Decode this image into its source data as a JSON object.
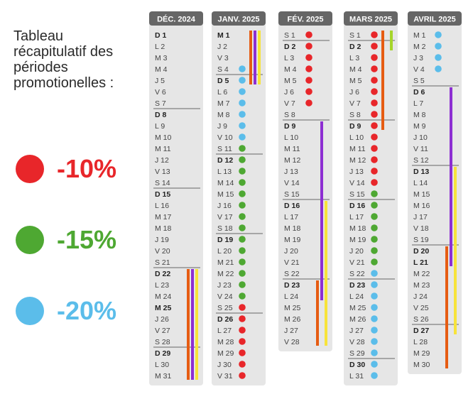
{
  "title": "Tableau récapitulatif des périodes promotionelles :",
  "title_lines": [
    "Tableau",
    "récapitulatif des",
    "périodes",
    "promotionelles :"
  ],
  "legend": [
    {
      "label": "-10%",
      "color": "#e8262a"
    },
    {
      "label": "-15%",
      "color": "#4ea832"
    },
    {
      "label": "-20%",
      "color": "#5bbdea"
    }
  ],
  "bar_colors": {
    "orange": "#e65c12",
    "purple": "#8d2ed2",
    "yellow": "#f7e33a",
    "lime": "#a5d52a"
  },
  "months": [
    {
      "name": "DÉC. 2024",
      "days": [
        {
          "l": "D",
          "n": "1",
          "b": true
        },
        {
          "l": "L",
          "n": "2"
        },
        {
          "l": "M",
          "n": "3"
        },
        {
          "l": "M",
          "n": "4"
        },
        {
          "l": "J",
          "n": "5"
        },
        {
          "l": "V",
          "n": "6"
        },
        {
          "l": "S",
          "n": "7"
        },
        {
          "l": "D",
          "n": "8",
          "b": true
        },
        {
          "l": "L",
          "n": "9"
        },
        {
          "l": "M",
          "n": "10"
        },
        {
          "l": "M",
          "n": "11"
        },
        {
          "l": "J",
          "n": "12"
        },
        {
          "l": "V",
          "n": "13"
        },
        {
          "l": "S",
          "n": "14"
        },
        {
          "l": "D",
          "n": "15",
          "b": true
        },
        {
          "l": "L",
          "n": "16"
        },
        {
          "l": "M",
          "n": "17"
        },
        {
          "l": "M",
          "n": "18"
        },
        {
          "l": "J",
          "n": "19"
        },
        {
          "l": "V",
          "n": "20"
        },
        {
          "l": "S",
          "n": "21"
        },
        {
          "l": "D",
          "n": "22",
          "b": true
        },
        {
          "l": "L",
          "n": "23"
        },
        {
          "l": "M",
          "n": "24"
        },
        {
          "l": "M",
          "n": "25",
          "b": true
        },
        {
          "l": "J",
          "n": "26"
        },
        {
          "l": "V",
          "n": "27"
        },
        {
          "l": "S",
          "n": "28"
        },
        {
          "l": "D",
          "n": "29",
          "b": true
        },
        {
          "l": "L",
          "n": "30"
        },
        {
          "l": "M",
          "n": "31"
        }
      ],
      "dots": [],
      "seps": [
        1,
        8,
        15,
        22,
        29
      ],
      "bars": [
        {
          "color": "orange",
          "from": 22,
          "to": 31
        },
        {
          "color": "purple",
          "from": 22,
          "to": 31
        },
        {
          "color": "yellow",
          "from": 22,
          "to": 31
        }
      ]
    },
    {
      "name": "JANV. 2025",
      "days": [
        {
          "l": "M",
          "n": "1",
          "b": true
        },
        {
          "l": "J",
          "n": "2"
        },
        {
          "l": "V",
          "n": "3"
        },
        {
          "l": "S",
          "n": "4"
        },
        {
          "l": "D",
          "n": "5",
          "b": true
        },
        {
          "l": "L",
          "n": "6"
        },
        {
          "l": "M",
          "n": "7"
        },
        {
          "l": "M",
          "n": "8"
        },
        {
          "l": "J",
          "n": "9"
        },
        {
          "l": "V",
          "n": "10"
        },
        {
          "l": "S",
          "n": "11"
        },
        {
          "l": "D",
          "n": "12",
          "b": true
        },
        {
          "l": "L",
          "n": "13"
        },
        {
          "l": "M",
          "n": "14"
        },
        {
          "l": "M",
          "n": "15"
        },
        {
          "l": "J",
          "n": "16"
        },
        {
          "l": "V",
          "n": "17"
        },
        {
          "l": "S",
          "n": "18"
        },
        {
          "l": "D",
          "n": "19",
          "b": true
        },
        {
          "l": "L",
          "n": "20"
        },
        {
          "l": "M",
          "n": "21"
        },
        {
          "l": "M",
          "n": "22"
        },
        {
          "l": "J",
          "n": "23"
        },
        {
          "l": "V",
          "n": "24"
        },
        {
          "l": "S",
          "n": "25"
        },
        {
          "l": "D",
          "n": "26",
          "b": true
        },
        {
          "l": "L",
          "n": "27"
        },
        {
          "l": "M",
          "n": "28"
        },
        {
          "l": "M",
          "n": "29"
        },
        {
          "l": "J",
          "n": "30"
        },
        {
          "l": "V",
          "n": "31"
        }
      ],
      "dots": [
        "",
        "",
        "",
        "blue",
        "blue",
        "blue",
        "blue",
        "blue",
        "blue",
        "blue",
        "green",
        "green",
        "green",
        "green",
        "green",
        "green",
        "green",
        "green",
        "green",
        "green",
        "green",
        "green",
        "green",
        "green",
        "red",
        "red",
        "red",
        "red",
        "red",
        "red",
        "red"
      ],
      "seps": [
        5,
        12,
        19,
        26
      ],
      "bars": [
        {
          "color": "orange",
          "from": 1,
          "to": 5
        },
        {
          "color": "purple",
          "from": 1,
          "to": 5
        },
        {
          "color": "yellow",
          "from": 1,
          "to": 5
        }
      ]
    },
    {
      "name": "FÉV. 2025",
      "days": [
        {
          "l": "S",
          "n": "1"
        },
        {
          "l": "D",
          "n": "2",
          "b": true
        },
        {
          "l": "L",
          "n": "3"
        },
        {
          "l": "M",
          "n": "4"
        },
        {
          "l": "M",
          "n": "5"
        },
        {
          "l": "J",
          "n": "6"
        },
        {
          "l": "V",
          "n": "7"
        },
        {
          "l": "S",
          "n": "8"
        },
        {
          "l": "D",
          "n": "9",
          "b": true
        },
        {
          "l": "L",
          "n": "10"
        },
        {
          "l": "M",
          "n": "11"
        },
        {
          "l": "M",
          "n": "12"
        },
        {
          "l": "J",
          "n": "13"
        },
        {
          "l": "V",
          "n": "14"
        },
        {
          "l": "S",
          "n": "15"
        },
        {
          "l": "D",
          "n": "16",
          "b": true
        },
        {
          "l": "L",
          "n": "17"
        },
        {
          "l": "M",
          "n": "18"
        },
        {
          "l": "M",
          "n": "19"
        },
        {
          "l": "J",
          "n": "20"
        },
        {
          "l": "V",
          "n": "21"
        },
        {
          "l": "S",
          "n": "22"
        },
        {
          "l": "D",
          "n": "23",
          "b": true
        },
        {
          "l": "L",
          "n": "24"
        },
        {
          "l": "M",
          "n": "25"
        },
        {
          "l": "M",
          "n": "26"
        },
        {
          "l": "J",
          "n": "27"
        },
        {
          "l": "V",
          "n": "28"
        }
      ],
      "dots": [
        "red",
        "red",
        "red",
        "red",
        "red",
        "red",
        "red"
      ],
      "seps": [
        2,
        9,
        16,
        23
      ],
      "bars": [
        {
          "color": "purple",
          "from": 9,
          "to": 24
        },
        {
          "color": "yellow",
          "from": 16,
          "to": 28
        },
        {
          "color": "orange",
          "from": 23,
          "to": 28
        }
      ]
    },
    {
      "name": "MARS 2025",
      "days": [
        {
          "l": "S",
          "n": "1"
        },
        {
          "l": "D",
          "n": "2",
          "b": true
        },
        {
          "l": "L",
          "n": "3"
        },
        {
          "l": "M",
          "n": "4"
        },
        {
          "l": "M",
          "n": "5"
        },
        {
          "l": "J",
          "n": "6"
        },
        {
          "l": "V",
          "n": "7"
        },
        {
          "l": "S",
          "n": "8"
        },
        {
          "l": "D",
          "n": "9",
          "b": true
        },
        {
          "l": "L",
          "n": "10"
        },
        {
          "l": "M",
          "n": "11"
        },
        {
          "l": "M",
          "n": "12"
        },
        {
          "l": "J",
          "n": "13"
        },
        {
          "l": "V",
          "n": "14"
        },
        {
          "l": "S",
          "n": "15"
        },
        {
          "l": "D",
          "n": "16",
          "b": true
        },
        {
          "l": "L",
          "n": "17"
        },
        {
          "l": "M",
          "n": "18"
        },
        {
          "l": "M",
          "n": "19"
        },
        {
          "l": "J",
          "n": "20"
        },
        {
          "l": "V",
          "n": "21"
        },
        {
          "l": "S",
          "n": "22"
        },
        {
          "l": "D",
          "n": "23",
          "b": true
        },
        {
          "l": "L",
          "n": "24"
        },
        {
          "l": "M",
          "n": "25"
        },
        {
          "l": "M",
          "n": "26"
        },
        {
          "l": "J",
          "n": "27"
        },
        {
          "l": "V",
          "n": "28"
        },
        {
          "l": "S",
          "n": "29"
        },
        {
          "l": "D",
          "n": "30",
          "b": true
        },
        {
          "l": "L",
          "n": "31"
        }
      ],
      "dots": [
        "red",
        "red",
        "red",
        "red",
        "red",
        "red",
        "red",
        "red",
        "red",
        "red",
        "red",
        "red",
        "red",
        "red",
        "green",
        "green",
        "green",
        "green",
        "green",
        "green",
        "green",
        "blue",
        "blue",
        "blue",
        "blue",
        "blue",
        "blue",
        "blue",
        "blue",
        "blue",
        "blue"
      ],
      "seps": [
        2,
        9,
        16,
        23,
        30
      ],
      "bars": [
        {
          "color": "orange",
          "from": 1,
          "to": 9
        },
        {
          "color": "lime",
          "from": 1,
          "to": 2
        }
      ]
    },
    {
      "name": "AVRIL 2025",
      "days": [
        {
          "l": "M",
          "n": "1"
        },
        {
          "l": "M",
          "n": "2"
        },
        {
          "l": "J",
          "n": "3"
        },
        {
          "l": "V",
          "n": "4"
        },
        {
          "l": "S",
          "n": "5"
        },
        {
          "l": "D",
          "n": "6",
          "b": true
        },
        {
          "l": "L",
          "n": "7"
        },
        {
          "l": "M",
          "n": "8"
        },
        {
          "l": "M",
          "n": "9"
        },
        {
          "l": "J",
          "n": "10"
        },
        {
          "l": "V",
          "n": "11"
        },
        {
          "l": "S",
          "n": "12"
        },
        {
          "l": "D",
          "n": "13",
          "b": true
        },
        {
          "l": "L",
          "n": "14"
        },
        {
          "l": "M",
          "n": "15"
        },
        {
          "l": "M",
          "n": "16"
        },
        {
          "l": "J",
          "n": "17"
        },
        {
          "l": "V",
          "n": "18"
        },
        {
          "l": "S",
          "n": "19"
        },
        {
          "l": "D",
          "n": "20",
          "b": true
        },
        {
          "l": "L",
          "n": "21",
          "b": true
        },
        {
          "l": "M",
          "n": "22"
        },
        {
          "l": "M",
          "n": "23"
        },
        {
          "l": "J",
          "n": "24"
        },
        {
          "l": "V",
          "n": "25"
        },
        {
          "l": "S",
          "n": "26"
        },
        {
          "l": "D",
          "n": "27",
          "b": true
        },
        {
          "l": "L",
          "n": "28"
        },
        {
          "l": "M",
          "n": "29"
        },
        {
          "l": "M",
          "n": "30"
        }
      ],
      "dots": [
        "blue",
        "blue",
        "blue",
        "blue"
      ],
      "seps": [
        6,
        13,
        20,
        27
      ],
      "bars": [
        {
          "color": "purple",
          "from": 6,
          "to": 21
        },
        {
          "color": "yellow",
          "from": 13,
          "to": 27
        },
        {
          "color": "orange",
          "from": 20,
          "to": 30
        }
      ]
    }
  ]
}
